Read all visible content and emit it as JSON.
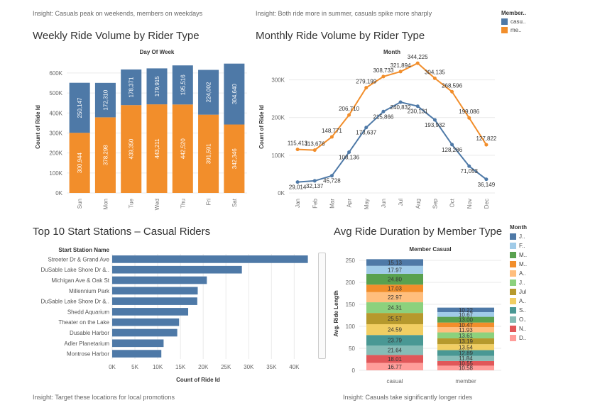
{
  "insights": {
    "weekly": "Insight: Casuals peak on weekends, members on weekdays",
    "monthly": "Insight: Both ride more in summer, casuals spike more sharply",
    "stations": "Insight: Target these locations for local promotions",
    "duration": "Insight: Casuals take significantly longer rides"
  },
  "legend_member": {
    "title": "Member..",
    "items": [
      {
        "label": "casu..",
        "color": "#4e79a7"
      },
      {
        "label": "me..",
        "color": "#f28e2b"
      }
    ]
  },
  "legend_month": {
    "title": "Month",
    "items": [
      {
        "label": "J..",
        "color": "#4e79a7"
      },
      {
        "label": "F..",
        "color": "#a0cbe8"
      },
      {
        "label": "M..",
        "color": "#59a14f"
      },
      {
        "label": "M..",
        "color": "#f28e2b"
      },
      {
        "label": "A..",
        "color": "#ffbe7d"
      },
      {
        "label": "J..",
        "color": "#8cd17d"
      },
      {
        "label": "Jul",
        "color": "#b6992d"
      },
      {
        "label": "A..",
        "color": "#f1ce63"
      },
      {
        "label": "S..",
        "color": "#499894"
      },
      {
        "label": "O..",
        "color": "#86bcb6"
      },
      {
        "label": "N..",
        "color": "#e15759"
      },
      {
        "label": "D..",
        "color": "#ff9d9a"
      }
    ]
  },
  "chart_data": [
    {
      "id": "weekly",
      "type": "bar",
      "stacked": true,
      "title": "Weekly Ride Volume by Rider Type",
      "top_label": "Day Of Week",
      "ylabel": "Count of Ride Id",
      "ylim": [
        0,
        660000
      ],
      "yticks": [
        0,
        100000,
        200000,
        300000,
        400000,
        500000,
        600000
      ],
      "ytick_labels": [
        "0K",
        "100K",
        "200K",
        "300K",
        "400K",
        "500K",
        "600K"
      ],
      "categories": [
        "Sun",
        "Mon",
        "Tue",
        "Wed",
        "Thu",
        "Fri",
        "Sat"
      ],
      "series": [
        {
          "name": "member",
          "color": "#f28e2b",
          "values": [
            300944,
            378298,
            439350,
            443211,
            442520,
            391591,
            342346
          ],
          "labels": [
            "300,944",
            "378,298",
            "439,350",
            "443,211",
            "442,520",
            "391,591",
            "342,346"
          ]
        },
        {
          "name": "casual",
          "color": "#4e79a7",
          "values": [
            250147,
            172310,
            178371,
            179915,
            195516,
            224002,
            304640
          ],
          "labels": [
            "250,147",
            "172,310",
            "178,371",
            "179,915",
            "195,516",
            "224,002",
            "304,640"
          ]
        }
      ],
      "grid": true
    },
    {
      "id": "monthly",
      "type": "line",
      "title": "Monthly Ride Volume by Rider Type",
      "top_label": "Month",
      "ylabel": "Count of Ride Id",
      "ylim": [
        0,
        350000
      ],
      "yticks": [
        0,
        100000,
        200000,
        300000
      ],
      "ytick_labels": [
        "0K",
        "100K",
        "200K",
        "300K"
      ],
      "categories": [
        "Jan",
        "Feb",
        "Mar",
        "Apr",
        "May",
        "Jun",
        "Jul",
        "Aug",
        "Sep",
        "Oct",
        "Nov",
        "Dec"
      ],
      "series": [
        {
          "name": "casual",
          "color": "#4e79a7",
          "values": [
            29014,
            32137,
            45728,
            108136,
            173637,
            215866,
            240832,
            230131,
            193932,
            128286,
            71053,
            36149
          ],
          "labels": [
            "29,014",
            "32,137",
            "45,728",
            "108,136",
            "173,637",
            "215,866",
            "240,832",
            "230,131",
            "193,932",
            "128,286",
            "71,053",
            "36,149"
          ]
        },
        {
          "name": "member",
          "color": "#f28e2b",
          "values": [
            115413,
            113676,
            148771,
            206710,
            279199,
            308733,
            321894,
            344225,
            304135,
            268596,
            199086,
            127822
          ],
          "labels": [
            "115,413",
            "113,676",
            "148,771",
            "206,710",
            "279,199",
            "308,733",
            "321,894",
            "344,225",
            "304,135",
            "268,596",
            "199,086",
            "127,822"
          ]
        }
      ],
      "grid": true
    },
    {
      "id": "stations",
      "type": "bar",
      "orientation": "horizontal",
      "title": "Top 10 Start Stations – Casual Riders",
      "top_label": "Start Station Name",
      "xlabel": "Count of Ride Id",
      "xlim": [
        0,
        44000
      ],
      "xticks": [
        0,
        5000,
        10000,
        15000,
        20000,
        25000,
        30000,
        35000,
        40000
      ],
      "xtick_labels": [
        "0K",
        "5K",
        "10K",
        "15K",
        "20K",
        "25K",
        "30K",
        "35K",
        "40K"
      ],
      "categories": [
        "Streeter Dr & Grand Ave",
        "DuSable Lake Shore Dr &..",
        "Michigan Ave & Oak St",
        "Millennium Park",
        "DuSable Lake Shore Dr &..",
        "Shedd Aquarium",
        "Theater on the Lake",
        "Dusable Harbor",
        "Adler Planetarium",
        "Montrose Harbor"
      ],
      "values": [
        43000,
        28500,
        20800,
        18800,
        18700,
        16700,
        14700,
        14300,
        11300,
        10800
      ],
      "color": "#4e79a7",
      "grid": true
    },
    {
      "id": "duration",
      "type": "bar",
      "stacked": true,
      "title": "Avg Ride Duration by Member Type",
      "top_label": "Member Casual",
      "ylabel": "Avg. Ride Length",
      "ylim": [
        0,
        258
      ],
      "yticks": [
        0,
        50,
        100,
        150,
        200,
        250
      ],
      "ytick_labels": [
        "0",
        "50",
        "100",
        "150",
        "200",
        "250"
      ],
      "categories": [
        "casual",
        "member"
      ],
      "months": [
        "Jan",
        "Feb",
        "Mar",
        "Apr",
        "May",
        "Jun",
        "Jul",
        "Aug",
        "Sep",
        "Oct",
        "Nov",
        "Dec"
      ],
      "colors": [
        "#4e79a7",
        "#a0cbe8",
        "#59a14f",
        "#f28e2b",
        "#ffbe7d",
        "#8cd17d",
        "#b6992d",
        "#f1ce63",
        "#499894",
        "#86bcb6",
        "#e15759",
        "#ff9d9a"
      ],
      "stack_order": [
        "Dec",
        "Nov",
        "Oct",
        "Sep",
        "Aug",
        "Jul",
        "Jun",
        "May",
        "Apr",
        "Mar",
        "Feb",
        "Jan"
      ],
      "values": {
        "casual": {
          "Jan": 15.13,
          "Feb": 17.97,
          "Mar": 24.8,
          "Apr": 17.03,
          "May": 22.97,
          "Jun": 24.31,
          "Jul": 25.57,
          "Aug": 24.59,
          "Sep": 23.79,
          "Oct": 21.64,
          "Nov": 18.01,
          "Dec": 16.77
        },
        "member": {
          "Jan": 10.22,
          "Feb": 10.67,
          "Mar": 13.0,
          "Apr": 10.47,
          "May": 11.93,
          "Jun": 13.61,
          "Jul": 13.19,
          "Aug": 13.54,
          "Sep": 12.89,
          "Oct": 11.84,
          "Nov": 10.55,
          "Dec": 10.58
        }
      },
      "labels": {
        "casual": {
          "Jan": "15.13",
          "Feb": "17.97",
          "Mar": "24.80",
          "Apr": "17.03",
          "May": "22.97",
          "Jun": "24.31",
          "Jul": "25.57",
          "Aug": "24.59",
          "Sep": "23.79",
          "Oct": "21.64",
          "Nov": "18.01",
          "Dec": "16.77"
        },
        "member": {
          "Jan": "10.22",
          "Feb": "10.67",
          "Mar": "13.00",
          "Apr": "10.47",
          "May": "11.93",
          "Jun": "13.61",
          "Jul": "13.19",
          "Aug": "13.54",
          "Sep": "12.89",
          "Oct": "11.84",
          "Nov": "10.55",
          "Dec": "10.58"
        }
      },
      "grid": true
    }
  ]
}
